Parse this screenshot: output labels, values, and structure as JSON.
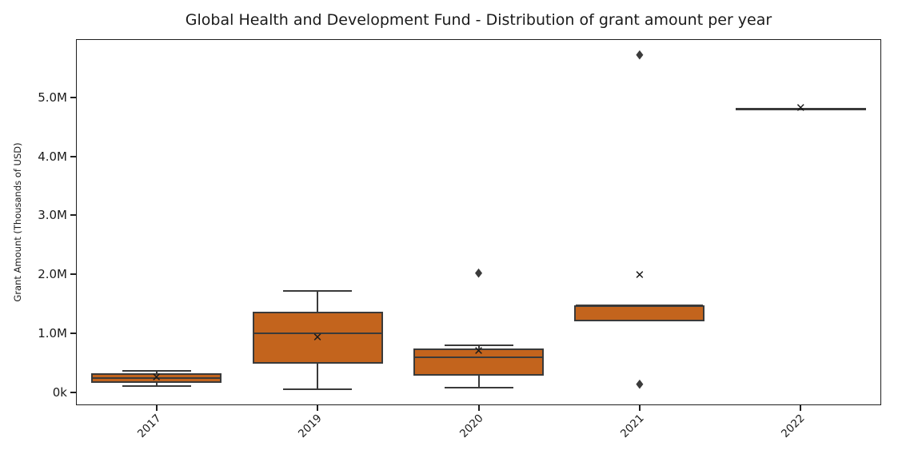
{
  "chart_data": {
    "type": "box",
    "title": "Global Health and Development Fund - Distribution of grant amount per year",
    "xlabel": "",
    "ylabel": "Grant Amount (Thousands of USD)",
    "categories": [
      "2017",
      "2019",
      "2020",
      "2021",
      "2022"
    ],
    "yticks": [
      {
        "label": "0k",
        "value": 0
      },
      {
        "label": "1.0M",
        "value": 1.0
      },
      {
        "label": "2.0M",
        "value": 2.0
      },
      {
        "label": "3.0M",
        "value": 3.0
      },
      {
        "label": "4.0M",
        "value": 4.0
      },
      {
        "label": "5.0M",
        "value": 5.0
      }
    ],
    "ylim": [
      -0.21,
      5.98
    ],
    "values_unit": "millions of thousands USD (as shown on axis ticks)",
    "grid": false,
    "legend": "none",
    "mean_marker": "x",
    "outlier_marker": "diamond",
    "series": [
      {
        "category": "2017",
        "whislo": 0.12,
        "q1": 0.17,
        "med": 0.25,
        "q3": 0.33,
        "whishi": 0.37,
        "mean": 0.25,
        "fliers": []
      },
      {
        "category": "2019",
        "whislo": 0.06,
        "q1": 0.49,
        "med": 1.01,
        "q3": 1.37,
        "whishi": 1.72,
        "mean": 0.92,
        "fliers": []
      },
      {
        "category": "2020",
        "whislo": 0.09,
        "q1": 0.29,
        "med": 0.6,
        "q3": 0.75,
        "whishi": 0.81,
        "mean": 0.7,
        "fliers": [
          2.0
        ]
      },
      {
        "category": "2021",
        "whislo": 1.21,
        "q1": 1.21,
        "med": 1.48,
        "q3": 1.48,
        "whishi": 1.48,
        "mean": 1.98,
        "fliers": [
          5.7,
          0.13
        ]
      },
      {
        "category": "2022",
        "whislo": 4.8,
        "q1": 4.8,
        "med": 4.8,
        "q3": 4.8,
        "whishi": 4.8,
        "mean": 4.8,
        "fliers": []
      }
    ],
    "colors": {
      "box_fill": "#c3641d",
      "box_edge": "#3a3a3a",
      "whisker": "#3a3a3a",
      "median": "#3a3a3a",
      "mean_marker": "#1a1a1a",
      "outlier": "#3b3b3b",
      "axis": "#1f1f1f",
      "background": "#ffffff"
    }
  }
}
